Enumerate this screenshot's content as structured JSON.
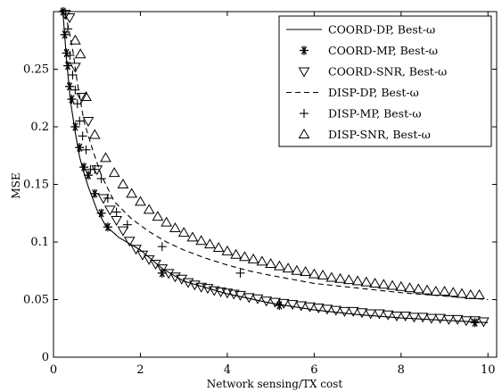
{
  "chart_data": {
    "type": "line",
    "xlabel": "Network sensing/TX cost",
    "ylabel": "MSE",
    "xlim": [
      0,
      10.2
    ],
    "ylim": [
      0,
      0.3
    ],
    "xticks": [
      0,
      2,
      4,
      6,
      8,
      10
    ],
    "yticks": [
      0,
      0.05,
      0.1,
      0.15,
      0.2,
      0.25
    ],
    "xtick_labels": [
      "0",
      "2",
      "4",
      "6",
      "8",
      "10"
    ],
    "ytick_labels": [
      "0",
      "0.05",
      "0.1",
      "0.15",
      "0.2",
      "0.25"
    ],
    "grid": false,
    "legend_position": "top-right",
    "series": [
      {
        "name": "COORD-DP, Best-ω",
        "style": "line-solid",
        "color": "#000000",
        "x": [
          0.22,
          0.26,
          0.3,
          0.35,
          0.4,
          0.5,
          0.6,
          0.7,
          0.8,
          1.0,
          1.2,
          1.5,
          2.0,
          2.5,
          3.0,
          4.0,
          5.0,
          6.0,
          7.0,
          8.0,
          9.0,
          10.0
        ],
        "y": [
          0.298,
          0.278,
          0.258,
          0.238,
          0.22,
          0.195,
          0.174,
          0.16,
          0.148,
          0.128,
          0.114,
          0.104,
          0.093,
          0.077,
          0.066,
          0.055,
          0.047,
          0.041,
          0.037,
          0.034,
          0.032,
          0.03
        ]
      },
      {
        "name": "COORD-MP, Best-ω",
        "style": "marker-asterisk",
        "color": "#000000",
        "x": [
          0.22,
          0.26,
          0.3,
          0.33,
          0.37,
          0.42,
          0.5,
          0.6,
          0.7,
          0.8,
          0.95,
          1.1,
          1.25,
          2.5,
          5.2,
          9.7
        ],
        "y": [
          0.3,
          0.28,
          0.264,
          0.253,
          0.235,
          0.224,
          0.2,
          0.182,
          0.165,
          0.158,
          0.142,
          0.125,
          0.113,
          0.073,
          0.045,
          0.03
        ]
      },
      {
        "name": "COORD-SNR, Best-ω",
        "style": "marker-triangle-down",
        "color": "#000000",
        "x": [
          0.27,
          0.37,
          0.5,
          0.65,
          0.8,
          1.0,
          1.15,
          1.3,
          1.45,
          1.6,
          1.75,
          1.9,
          2.05,
          2.2,
          2.35,
          2.5,
          2.65,
          2.8,
          2.95,
          3.1,
          3.25,
          3.4,
          3.55,
          3.7,
          3.85,
          4.0,
          4.15,
          4.3,
          4.5,
          4.7,
          4.9,
          5.1,
          5.3,
          5.5,
          5.7,
          5.9,
          6.1,
          6.3,
          6.5,
          6.7,
          6.9,
          7.1,
          7.3,
          7.5,
          7.7,
          7.9,
          8.1,
          8.3,
          8.5,
          8.7,
          8.9,
          9.1,
          9.3,
          9.5,
          9.7,
          9.9
        ],
        "y": [
          0.298,
          0.295,
          0.252,
          0.226,
          0.205,
          0.163,
          0.138,
          0.128,
          0.119,
          0.11,
          0.101,
          0.094,
          0.089,
          0.085,
          0.081,
          0.077,
          0.073,
          0.07,
          0.068,
          0.065,
          0.063,
          0.061,
          0.06,
          0.058,
          0.057,
          0.056,
          0.055,
          0.054,
          0.052,
          0.051,
          0.049,
          0.048,
          0.047,
          0.046,
          0.045,
          0.044,
          0.043,
          0.042,
          0.041,
          0.04,
          0.04,
          0.039,
          0.038,
          0.038,
          0.037,
          0.036,
          0.036,
          0.035,
          0.035,
          0.034,
          0.034,
          0.033,
          0.033,
          0.032,
          0.032,
          0.031
        ]
      },
      {
        "name": "DISP-DP, Best-ω",
        "style": "line-dashed",
        "color": "#000000",
        "x": [
          0.27,
          0.35,
          0.45,
          0.55,
          0.7,
          0.9,
          1.1,
          1.4,
          1.8,
          2.2,
          2.6,
          3.0,
          3.5,
          4.0,
          4.5,
          5.0,
          6.0,
          7.0,
          8.0,
          9.0,
          10.0
        ],
        "y": [
          0.298,
          0.285,
          0.265,
          0.238,
          0.205,
          0.18,
          0.158,
          0.135,
          0.12,
          0.109,
          0.1,
          0.093,
          0.086,
          0.08,
          0.075,
          0.071,
          0.064,
          0.06,
          0.056,
          0.053,
          0.05
        ]
      },
      {
        "name": "DISP-MP, Best-ω",
        "style": "marker-plus",
        "color": "#000000",
        "x": [
          0.28,
          0.33,
          0.38,
          0.44,
          0.5,
          0.55,
          0.6,
          0.67,
          0.75,
          0.85,
          0.95,
          1.1,
          1.25,
          1.45,
          1.7,
          2.5,
          4.3
        ],
        "y": [
          0.298,
          0.285,
          0.262,
          0.245,
          0.232,
          0.22,
          0.205,
          0.192,
          0.18,
          0.163,
          0.163,
          0.155,
          0.138,
          0.126,
          0.115,
          0.096,
          0.073
        ]
      },
      {
        "name": "DISP-SNR, Best-ω",
        "style": "marker-triangle-up",
        "color": "#000000",
        "x": [
          0.5,
          0.62,
          0.75,
          0.95,
          1.2,
          1.4,
          1.6,
          1.8,
          2.0,
          2.2,
          2.4,
          2.6,
          2.8,
          3.0,
          3.2,
          3.4,
          3.6,
          3.8,
          4.0,
          4.2,
          4.4,
          4.6,
          4.8,
          5.0,
          5.2,
          5.4,
          5.6,
          5.8,
          6.0,
          6.2,
          6.4,
          6.6,
          6.8,
          7.0,
          7.2,
          7.4,
          7.6,
          7.8,
          8.0,
          8.2,
          8.4,
          8.6,
          8.8,
          9.0,
          9.2,
          9.4,
          9.6,
          9.8
        ],
        "y": [
          0.275,
          0.263,
          0.226,
          0.193,
          0.173,
          0.16,
          0.15,
          0.142,
          0.135,
          0.128,
          0.122,
          0.117,
          0.112,
          0.108,
          0.104,
          0.101,
          0.098,
          0.095,
          0.092,
          0.089,
          0.087,
          0.085,
          0.083,
          0.081,
          0.079,
          0.077,
          0.075,
          0.074,
          0.072,
          0.071,
          0.069,
          0.068,
          0.067,
          0.066,
          0.065,
          0.064,
          0.063,
          0.062,
          0.061,
          0.06,
          0.059,
          0.058,
          0.057,
          0.057,
          0.056,
          0.055,
          0.054,
          0.054
        ]
      }
    ]
  }
}
